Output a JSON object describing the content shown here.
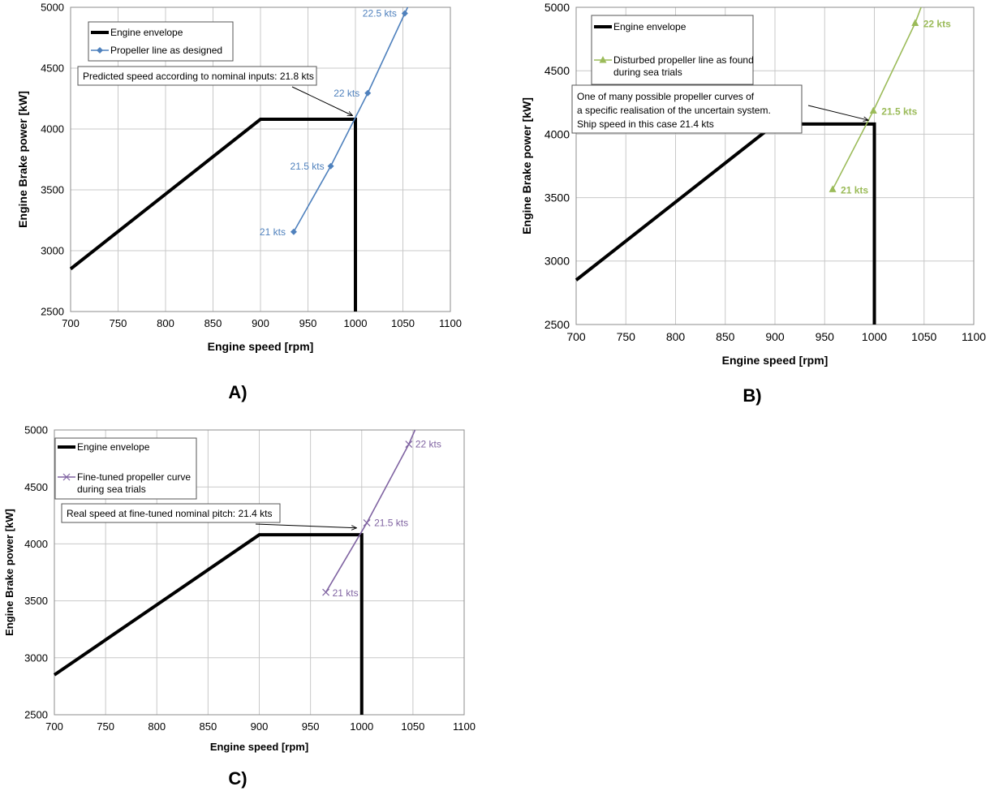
{
  "colors": {
    "engine": "#000000",
    "propeller_designed": "#4f81bd",
    "propeller_disturbed": "#9bbb59",
    "propeller_finetuned": "#8064a2"
  },
  "chart_data": [
    {
      "panel_label": "A)",
      "type": "line",
      "xlabel": "Engine speed [rpm]",
      "ylabel": "Engine Brake power [kW]",
      "xlim": [
        700,
        1100
      ],
      "ylim": [
        2500,
        5000
      ],
      "xticks": [
        700,
        750,
        800,
        850,
        900,
        950,
        1000,
        1050,
        1100
      ],
      "yticks": [
        2500,
        3000,
        3500,
        4000,
        4500,
        5000
      ],
      "grid": true,
      "legend_placement": "top-left",
      "series": [
        {
          "name": "Engine envelope",
          "color": "#000000",
          "marker": "none",
          "x": [
            700,
            900,
            1000,
            1000
          ],
          "y": [
            2850,
            4080,
            4080,
            2500
          ]
        },
        {
          "name": "Propeller line as designed",
          "color": "#4f81bd",
          "marker": "diamond",
          "x": [
            935,
            974,
            1013,
            1052,
            1055
          ],
          "y": [
            3155,
            3695,
            4295,
            4950,
            5000
          ]
        }
      ],
      "point_labels": [
        {
          "text": "21 kts",
          "x": 935,
          "y": 3155
        },
        {
          "text": "21.5 kts",
          "x": 974,
          "y": 3695
        },
        {
          "text": "22 kts",
          "x": 1013,
          "y": 4295
        },
        {
          "text": "22.5 kts",
          "x": 1052,
          "y": 4950
        }
      ],
      "annotation": {
        "lines": [
          "Predicted speed according to nominal inputs: 21.8 kts"
        ],
        "arrow_to": {
          "x": 997,
          "y": 4110
        }
      }
    },
    {
      "panel_label": "B)",
      "type": "line",
      "xlabel": "Engine speed [rpm]",
      "ylabel": "Engine Brake power [kW]",
      "xlim": [
        700,
        1100
      ],
      "ylim": [
        2500,
        5000
      ],
      "xticks": [
        700,
        750,
        800,
        850,
        900,
        950,
        1000,
        1050,
        1100
      ],
      "yticks": [
        2500,
        3000,
        3500,
        4000,
        4500,
        5000
      ],
      "grid": true,
      "legend_placement": "top-left",
      "series": [
        {
          "name": "Engine envelope",
          "color": "#000000",
          "marker": "none",
          "x": [
            700,
            900,
            1000,
            1000
          ],
          "y": [
            2850,
            4080,
            4080,
            2500
          ]
        },
        {
          "name": "Disturbed propeller line as found during sea trials",
          "color": "#9bbb59",
          "marker": "triangle",
          "x": [
            958,
            999,
            1041,
            1047
          ],
          "y": [
            3565,
            4185,
            4875,
            5000
          ]
        }
      ],
      "point_labels": [
        {
          "text": "21 kts",
          "x": 958,
          "y": 3565
        },
        {
          "text": "21.5 kts",
          "x": 999,
          "y": 4185
        },
        {
          "text": "22 kts",
          "x": 1041,
          "y": 4875
        }
      ],
      "annotation": {
        "lines": [
          "One of many possible propeller curves of",
          "a specific realisation of the uncertain system.",
          "Ship speed in this case 21.4 kts"
        ],
        "arrow_to": {
          "x": 994,
          "y": 4110
        }
      }
    },
    {
      "panel_label": "C)",
      "type": "line",
      "xlabel": "Engine speed [rpm]",
      "ylabel": "Engine Brake power [kW]",
      "xlim": [
        700,
        1100
      ],
      "ylim": [
        2500,
        5000
      ],
      "xticks": [
        700,
        750,
        800,
        850,
        900,
        950,
        1000,
        1050,
        1100
      ],
      "yticks": [
        2500,
        3000,
        3500,
        4000,
        4500,
        5000
      ],
      "grid": true,
      "legend_placement": "top-left",
      "series": [
        {
          "name": "Engine envelope",
          "color": "#000000",
          "marker": "none",
          "x": [
            700,
            900,
            1000,
            1000
          ],
          "y": [
            2850,
            4080,
            4080,
            2500
          ]
        },
        {
          "name": "Fine-tuned propeller curve during sea trials",
          "color": "#8064a2",
          "marker": "x",
          "x": [
            965,
            1005,
            1046,
            1052
          ],
          "y": [
            3575,
            4185,
            4875,
            5000
          ]
        }
      ],
      "point_labels": [
        {
          "text": "21 kts",
          "x": 965,
          "y": 3575
        },
        {
          "text": "21.5 kts",
          "x": 1005,
          "y": 4185
        },
        {
          "text": "22 kts",
          "x": 1046,
          "y": 4875
        }
      ],
      "annotation": {
        "lines": [
          "Real speed at fine-tuned nominal pitch: 21.4 kts"
        ],
        "arrow_to": {
          "x": 995,
          "y": 4140
        }
      }
    }
  ]
}
